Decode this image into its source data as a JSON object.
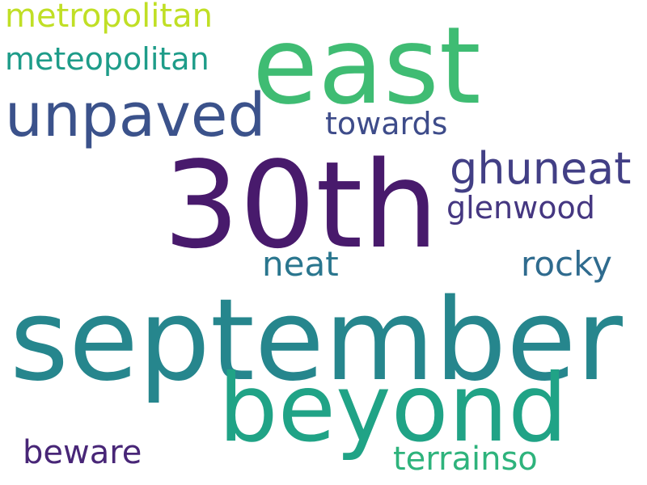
{
  "word_cloud": {
    "background_color": "#ffffff",
    "words": [
      {
        "key": "september",
        "text": "september",
        "color": "#26868d"
      },
      {
        "key": "30th",
        "text": "30th",
        "color": "#481a6c"
      },
      {
        "key": "east",
        "text": "east",
        "color": "#3fbc73"
      },
      {
        "key": "beyond",
        "text": "beyond",
        "color": "#20a386"
      },
      {
        "key": "unpaved",
        "text": "unpaved",
        "color": "#3b528b"
      },
      {
        "key": "ghuneat",
        "text": "ghuneat",
        "color": "#423f85"
      },
      {
        "key": "metropolitan",
        "text": "metropolitan",
        "color": "#c0df25"
      },
      {
        "key": "meteopolitan",
        "text": "meteopolitan",
        "color": "#1e9c89"
      },
      {
        "key": "towards",
        "text": "towards",
        "color": "#3e4c8a"
      },
      {
        "key": "glenwood",
        "text": "glenwood",
        "color": "#453781"
      },
      {
        "key": "neat",
        "text": "neat",
        "color": "#2a768e"
      },
      {
        "key": "rocky",
        "text": "rocky",
        "color": "#2f6b8e"
      },
      {
        "key": "beware",
        "text": "beware",
        "color": "#482677"
      },
      {
        "key": "terrainso",
        "text": "terrainso",
        "color": "#2eb37c"
      }
    ]
  }
}
